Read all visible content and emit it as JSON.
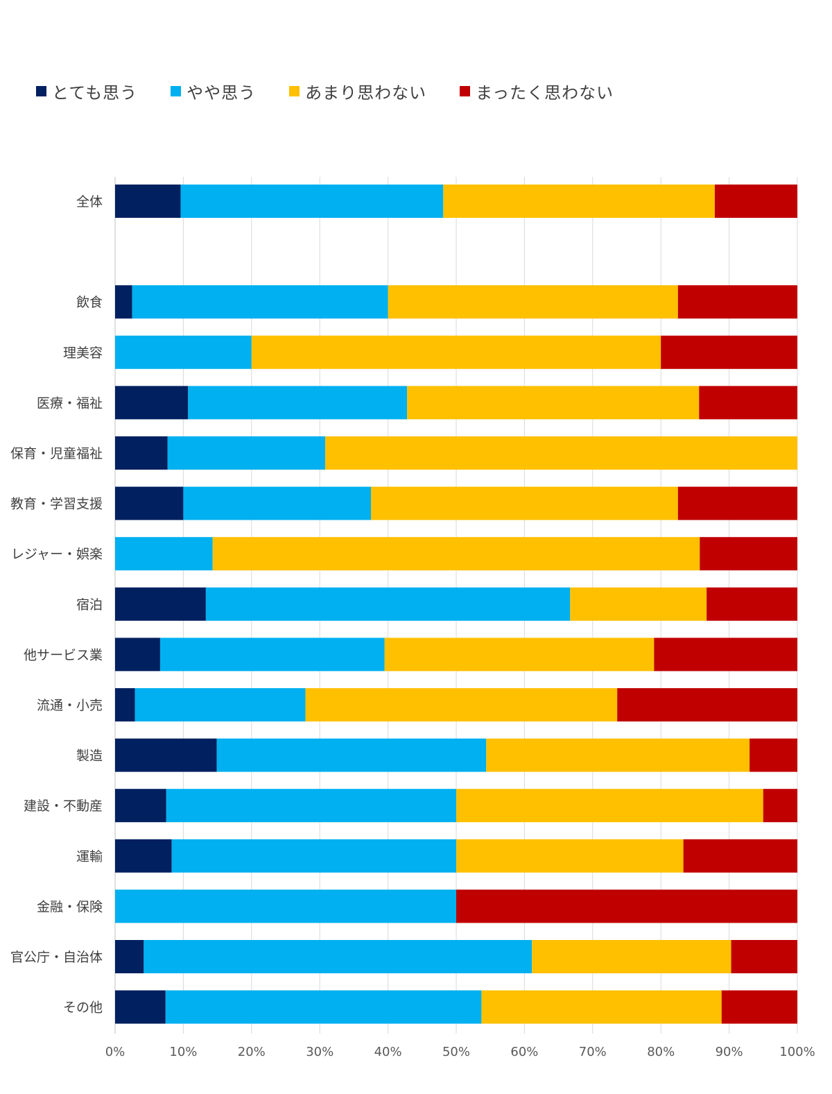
{
  "chart_data": {
    "type": "bar",
    "orientation": "horizontal",
    "stacked": "percent",
    "categories": [
      "全体",
      "",
      "飲食",
      "理美容",
      "医療・福祉",
      "保育・児童福祉",
      "教育・学習支援",
      "レジャー・娯楽",
      "宿泊",
      "他サービス業",
      "流通・小売",
      "製造",
      "建設・不動産",
      "運輸",
      "金融・保険",
      "官公庁・自治体",
      "その他"
    ],
    "series": [
      {
        "name": "とても思う",
        "color": "#002060",
        "values": [
          9.6,
          null,
          2.5,
          0,
          10.7,
          7.7,
          10.0,
          0,
          13.3,
          6.6,
          2.9,
          14.9,
          7.5,
          8.3,
          0,
          4.2,
          7.4
        ]
      },
      {
        "name": "やや思う",
        "color": "#00B0F0",
        "values": [
          38.5,
          null,
          37.5,
          20.0,
          32.1,
          23.1,
          27.5,
          14.3,
          53.4,
          32.9,
          25.0,
          39.5,
          42.5,
          41.7,
          50.0,
          56.9,
          46.3
        ]
      },
      {
        "name": "あまり思わない",
        "color": "#FFC000",
        "values": [
          39.8,
          null,
          42.5,
          60.0,
          42.8,
          69.2,
          45.0,
          71.4,
          20.0,
          39.5,
          45.7,
          38.6,
          45.0,
          33.3,
          0,
          29.2,
          35.2
        ]
      },
      {
        "name": "まったく思わない",
        "color": "#C00000",
        "values": [
          12.1,
          null,
          17.5,
          20.0,
          14.4,
          0,
          17.5,
          14.3,
          13.3,
          21.0,
          26.4,
          7.0,
          5.0,
          16.7,
          50.0,
          9.7,
          11.1
        ]
      }
    ],
    "xlim": [
      0,
      100
    ],
    "x_ticks": [
      "0%",
      "10%",
      "20%",
      "30%",
      "40%",
      "50%",
      "60%",
      "70%",
      "80%",
      "90%",
      "100%"
    ],
    "grid": "vertical",
    "legend_position": "top-left"
  }
}
